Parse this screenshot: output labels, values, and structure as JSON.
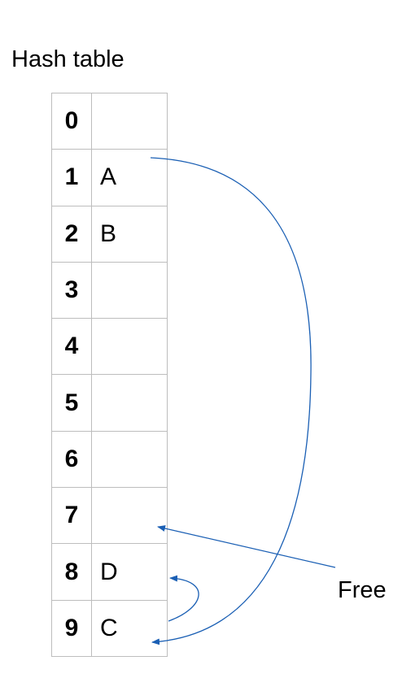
{
  "title": "Hash table",
  "rows": [
    {
      "index": "0",
      "value": ""
    },
    {
      "index": "1",
      "value": "A"
    },
    {
      "index": "2",
      "value": "B"
    },
    {
      "index": "3",
      "value": ""
    },
    {
      "index": "4",
      "value": ""
    },
    {
      "index": "5",
      "value": ""
    },
    {
      "index": "6",
      "value": ""
    },
    {
      "index": "7",
      "value": ""
    },
    {
      "index": "8",
      "value": "D"
    },
    {
      "index": "9",
      "value": "C"
    }
  ],
  "free_label": "Free",
  "arrow_color": "#1a5fb4",
  "grid_color": "#bdbdbd"
}
